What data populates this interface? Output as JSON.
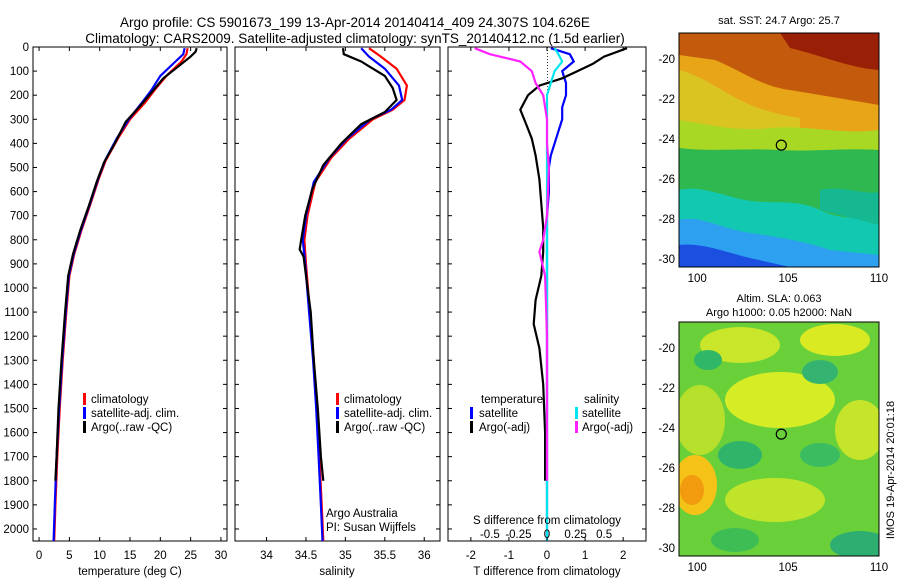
{
  "header": {
    "line1": "Argo profile: CS 5901673_199 13-Apr-2014 20140414_409 24.307S 104.626E",
    "line2": "Climatology: CARS2009. Satellite-adjusted climatology: synTS_20140412.nc (1.5d earlier)"
  },
  "credit": "IMOS 19-Apr-2014 20:01:18",
  "colors": {
    "climatology": "#ff0000",
    "satellite": "#0000ff",
    "argo": "#000000",
    "salinity_sat": "#00e5ee",
    "salinity_argo": "#ff22ff"
  },
  "chart_data": [
    {
      "type": "line",
      "name": "temperature-profile",
      "xlabel": "temperature (deg C)",
      "xlim": [
        -1,
        31
      ],
      "ylim": [
        2050,
        0
      ],
      "xticks": [
        0,
        5,
        10,
        15,
        20,
        25,
        30
      ],
      "yticks": [
        0,
        100,
        200,
        300,
        400,
        500,
        600,
        700,
        800,
        900,
        1000,
        1100,
        1200,
        1300,
        1400,
        1500,
        1600,
        1700,
        1800,
        1900,
        2000
      ],
      "legend": [
        "climatology",
        "satellite-adj. clim.",
        "Argo(..raw -QC)"
      ],
      "series": [
        {
          "name": "climatology",
          "color": "#ff0000",
          "points": [
            [
              24.5,
              5
            ],
            [
              24.3,
              30
            ],
            [
              23.5,
              60
            ],
            [
              21,
              120
            ],
            [
              19,
              180
            ],
            [
              17.5,
              230
            ],
            [
              15,
              300
            ],
            [
              13,
              380
            ],
            [
              11,
              470
            ],
            [
              9.8,
              550
            ],
            [
              8.5,
              650
            ],
            [
              7,
              760
            ],
            [
              5.8,
              860
            ],
            [
              5,
              950
            ],
            [
              4.5,
              1100
            ],
            [
              3.9,
              1300
            ],
            [
              3.4,
              1500
            ],
            [
              3.0,
              1700
            ],
            [
              2.7,
              1900
            ],
            [
              2.5,
              2050
            ]
          ]
        },
        {
          "name": "satellite-adj. clim.",
          "color": "#0000ff",
          "points": [
            [
              24.0,
              5
            ],
            [
              23.8,
              30
            ],
            [
              22.5,
              60
            ],
            [
              20,
              120
            ],
            [
              18.5,
              180
            ],
            [
              17,
              230
            ],
            [
              14.8,
              300
            ],
            [
              12.8,
              380
            ],
            [
              10.9,
              470
            ],
            [
              9.7,
              550
            ],
            [
              8.4,
              650
            ],
            [
              6.9,
              760
            ],
            [
              5.7,
              860
            ],
            [
              4.9,
              950
            ],
            [
              4.4,
              1100
            ],
            [
              3.8,
              1300
            ],
            [
              3.3,
              1500
            ],
            [
              2.9,
              1700
            ],
            [
              2.6,
              1900
            ],
            [
              2.4,
              2050
            ]
          ]
        },
        {
          "name": "Argo(..raw -QC)",
          "color": "#000000",
          "points": [
            [
              26,
              5
            ],
            [
              25.8,
              20
            ],
            [
              25,
              40
            ],
            [
              23,
              80
            ],
            [
              20.5,
              130
            ],
            [
              18.5,
              190
            ],
            [
              16.5,
              250
            ],
            [
              14.3,
              310
            ],
            [
              12.5,
              400
            ],
            [
              10.7,
              480
            ],
            [
              9.5,
              560
            ],
            [
              8.2,
              660
            ],
            [
              6.8,
              760
            ],
            [
              5.6,
              860
            ],
            [
              4.8,
              950
            ],
            [
              4.3,
              1100
            ],
            [
              3.7,
              1300
            ],
            [
              3.2,
              1500
            ],
            [
              2.9,
              1700
            ],
            [
              2.7,
              1800
            ]
          ]
        }
      ]
    },
    {
      "type": "line",
      "name": "salinity-profile",
      "xlabel": "salinity",
      "xlim": [
        33.6,
        36.2
      ],
      "ylim": [
        2050,
        0
      ],
      "xticks": [
        34,
        34.5,
        35,
        35.5,
        36
      ],
      "legend": [
        "climatology",
        "satellite-adj. clim.",
        "Argo(..raw -QC)"
      ],
      "annotation": [
        "Argo Australia",
        "PI: Susan Wijffels"
      ],
      "series": [
        {
          "name": "climatology",
          "color": "#ff0000",
          "points": [
            [
              35.3,
              5
            ],
            [
              35.45,
              40
            ],
            [
              35.65,
              90
            ],
            [
              35.78,
              160
            ],
            [
              35.75,
              220
            ],
            [
              35.6,
              260
            ],
            [
              35.35,
              300
            ],
            [
              35.05,
              380
            ],
            [
              34.82,
              460
            ],
            [
              34.62,
              560
            ],
            [
              34.52,
              700
            ],
            [
              34.48,
              800
            ],
            [
              34.5,
              900
            ],
            [
              34.55,
              1100
            ],
            [
              34.6,
              1300
            ],
            [
              34.64,
              1500
            ],
            [
              34.67,
              1700
            ],
            [
              34.7,
              1900
            ],
            [
              34.72,
              2050
            ]
          ]
        },
        {
          "name": "satellite-adj. clim.",
          "color": "#0000ff",
          "points": [
            [
              35.2,
              5
            ],
            [
              35.3,
              40
            ],
            [
              35.5,
              90
            ],
            [
              35.68,
              160
            ],
            [
              35.72,
              220
            ],
            [
              35.58,
              260
            ],
            [
              35.32,
              300
            ],
            [
              35.02,
              380
            ],
            [
              34.8,
              460
            ],
            [
              34.6,
              560
            ],
            [
              34.5,
              700
            ],
            [
              34.46,
              800
            ],
            [
              34.49,
              900
            ],
            [
              34.54,
              1100
            ],
            [
              34.59,
              1300
            ],
            [
              34.63,
              1500
            ],
            [
              34.66,
              1700
            ],
            [
              34.69,
              1900
            ],
            [
              34.71,
              2050
            ]
          ]
        },
        {
          "name": "Argo(..raw -QC)",
          "color": "#000000",
          "points": [
            [
              34.97,
              5
            ],
            [
              34.98,
              30
            ],
            [
              35.2,
              60
            ],
            [
              35.3,
              80
            ],
            [
              35.5,
              120
            ],
            [
              35.6,
              170
            ],
            [
              35.65,
              220
            ],
            [
              35.5,
              270
            ],
            [
              35.2,
              320
            ],
            [
              34.95,
              400
            ],
            [
              34.72,
              490
            ],
            [
              34.58,
              590
            ],
            [
              34.49,
              700
            ],
            [
              34.44,
              800
            ],
            [
              34.42,
              840
            ],
            [
              34.47,
              870
            ],
            [
              34.5,
              950
            ],
            [
              34.56,
              1100
            ],
            [
              34.6,
              1300
            ],
            [
              34.65,
              1500
            ],
            [
              34.69,
              1700
            ],
            [
              34.72,
              1800
            ]
          ]
        }
      ]
    },
    {
      "type": "line",
      "name": "difference-profile",
      "xlabel": "T difference from climatology",
      "xlabel_top": "S difference from climatology",
      "xlim": [
        -2.6,
        2.6
      ],
      "ylim": [
        2050,
        0
      ],
      "xticks": [
        -2,
        -1,
        0,
        1,
        2
      ],
      "xticks_s_positions": [
        -1.5,
        -0.75,
        0,
        0.75,
        1.5
      ],
      "xticks_s_labels": [
        "-0.5",
        "-0.25",
        "0",
        "0.25",
        "0.5"
      ],
      "legend_t_title": "temperature",
      "legend_s_title": "salinity",
      "legend": [
        "satellite",
        "Argo(-adj)",
        "satellite",
        "Argo(-adj)"
      ],
      "series": [
        {
          "name": "T satellite",
          "color": "#0000ff",
          "points": [
            [
              0.1,
              5
            ],
            [
              0.6,
              30
            ],
            [
              0.7,
              60
            ],
            [
              0.4,
              100
            ],
            [
              0.5,
              150
            ],
            [
              0.5,
              200
            ],
            [
              0.4,
              250
            ],
            [
              0.4,
              300
            ],
            [
              0.3,
              350
            ],
            [
              0.2,
              400
            ],
            [
              0.1,
              450
            ],
            [
              0.05,
              500
            ],
            [
              0.05,
              600
            ],
            [
              0.0,
              700
            ],
            [
              0.0,
              900
            ],
            [
              0.0,
              1200
            ],
            [
              0.0,
              1500
            ],
            [
              0.0,
              1800
            ],
            [
              0.0,
              2050
            ]
          ]
        },
        {
          "name": "T Argo(-adj)",
          "color": "#000000",
          "points": [
            [
              2.1,
              5
            ],
            [
              1.5,
              40
            ],
            [
              1.2,
              70
            ],
            [
              0.8,
              100
            ],
            [
              0.4,
              130
            ],
            [
              -0.2,
              160
            ],
            [
              -0.5,
              200
            ],
            [
              -0.7,
              260
            ],
            [
              -0.55,
              320
            ],
            [
              -0.4,
              380
            ],
            [
              -0.3,
              450
            ],
            [
              -0.2,
              550
            ],
            [
              -0.15,
              650
            ],
            [
              -0.1,
              750
            ],
            [
              -0.1,
              850
            ],
            [
              -0.15,
              950
            ],
            [
              -0.3,
              1050
            ],
            [
              -0.35,
              1150
            ],
            [
              -0.2,
              1250
            ],
            [
              -0.1,
              1400
            ],
            [
              -0.05,
              1600
            ],
            [
              -0.05,
              1800
            ]
          ]
        },
        {
          "name": "S satellite",
          "color": "#00e5ee",
          "points": [
            [
              0.2,
              5
            ],
            [
              0.3,
              30
            ],
            [
              0.4,
              60
            ],
            [
              0.2,
              100
            ],
            [
              0.1,
              150
            ],
            [
              0.0,
              200
            ],
            [
              0.0,
              300
            ],
            [
              0.0,
              400
            ],
            [
              0.0,
              600
            ],
            [
              0.0,
              800
            ],
            [
              0.0,
              1200
            ],
            [
              0.0,
              1600
            ],
            [
              0.0,
              2050
            ]
          ]
        },
        {
          "name": "S Argo(-adj)",
          "color": "#ff22ff",
          "points": [
            [
              -1.9,
              5
            ],
            [
              -1.5,
              30
            ],
            [
              -0.7,
              60
            ],
            [
              -0.4,
              100
            ],
            [
              -0.3,
              150
            ],
            [
              -0.1,
              200
            ],
            [
              0.0,
              300
            ],
            [
              0.0,
              400
            ],
            [
              0.05,
              500
            ],
            [
              0.0,
              700
            ],
            [
              -0.1,
              800
            ],
            [
              -0.2,
              850
            ],
            [
              -0.05,
              950
            ],
            [
              0.0,
              1200
            ],
            [
              0.0,
              1500
            ],
            [
              0.0,
              1800
            ]
          ]
        }
      ]
    },
    {
      "type": "heatmap",
      "name": "sst-map",
      "title": "sat. SST: 24.7 Argo: 25.7",
      "xlim": [
        99,
        110
      ],
      "ylim": [
        -30.4,
        -18.7
      ],
      "xticks": [
        100,
        105,
        110
      ],
      "yticks": [
        -20,
        -22,
        -24,
        -26,
        -28,
        -30
      ],
      "marker": [
        104.626,
        -24.307
      ]
    },
    {
      "type": "heatmap",
      "name": "sla-map",
      "title": [
        "Altim. SLA: 0.063",
        "Argo h1000: 0.05 h2000: NaN"
      ],
      "xlim": [
        99,
        110
      ],
      "ylim": [
        -30.4,
        -18.7
      ],
      "xticks": [
        100,
        105,
        110
      ],
      "yticks": [
        -20,
        -22,
        -24,
        -26,
        -28,
        -30
      ],
      "marker": [
        104.626,
        -24.307
      ]
    }
  ]
}
